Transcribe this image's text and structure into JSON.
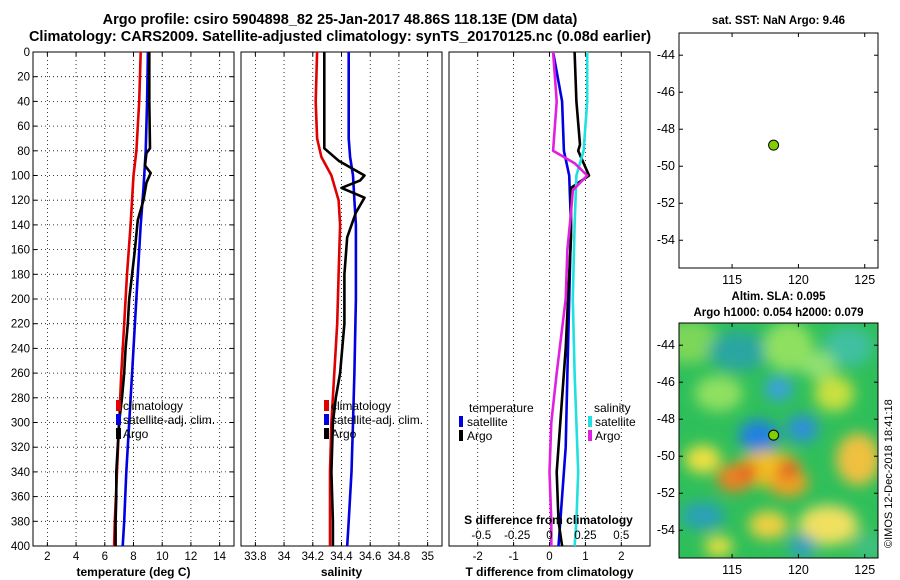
{
  "header": {
    "line1": "Argo profile: csiro 5904898_82 25-Jan-2017 48.86S 118.13E (DM data)",
    "line2": "Climatology: CARS2009. Satellite-adjusted climatology: synTS_20170125.nc (0.08d earlier)"
  },
  "colors": {
    "climatology": "#e00000",
    "satellite": "#0000e0",
    "argo": "#000000",
    "salinity_diff": "#e020e0",
    "salinity_sat": "#20e0e0",
    "marker": "#80d000"
  },
  "chart_data": [
    {
      "type": "line",
      "name": "temperature",
      "xlabel": "temperature (deg C)",
      "ylabel": "depth",
      "xlim": [
        1,
        15
      ],
      "ylim": [
        400,
        0
      ],
      "xticks": [
        2,
        4,
        6,
        8,
        10,
        12,
        14
      ],
      "yticks": [
        0,
        20,
        40,
        60,
        80,
        100,
        120,
        140,
        160,
        180,
        200,
        220,
        240,
        260,
        280,
        300,
        320,
        340,
        360,
        380,
        400
      ],
      "grid": true,
      "legend": [
        "climatology",
        "satellite-adj. clim.",
        "Argo"
      ],
      "series": [
        {
          "name": "climatology",
          "color": "#e00000",
          "points": [
            [
              8.5,
              0
            ],
            [
              8.4,
              40
            ],
            [
              8.2,
              80
            ],
            [
              8.0,
              100
            ],
            [
              7.8,
              140
            ],
            [
              7.55,
              180
            ],
            [
              7.35,
              220
            ],
            [
              7.15,
              260
            ],
            [
              7.0,
              300
            ],
            [
              6.85,
              340
            ],
            [
              6.7,
              380
            ],
            [
              6.65,
              400
            ]
          ]
        },
        {
          "name": "satellite-adj. clim.",
          "color": "#0000e0",
          "points": [
            [
              9.0,
              0
            ],
            [
              8.95,
              40
            ],
            [
              8.85,
              80
            ],
            [
              8.7,
              110
            ],
            [
              8.5,
              140
            ],
            [
              8.3,
              180
            ],
            [
              8.1,
              220
            ],
            [
              7.9,
              260
            ],
            [
              7.7,
              300
            ],
            [
              7.5,
              340
            ],
            [
              7.35,
              380
            ],
            [
              7.25,
              400
            ]
          ]
        },
        {
          "name": "Argo",
          "color": "#000000",
          "points": [
            [
              9.1,
              0
            ],
            [
              9.1,
              40
            ],
            [
              9.15,
              78
            ],
            [
              8.9,
              82
            ],
            [
              8.8,
              92
            ],
            [
              9.2,
              98
            ],
            [
              8.9,
              106
            ],
            [
              8.7,
              120
            ],
            [
              8.3,
              136
            ],
            [
              8.1,
              160
            ],
            [
              7.9,
              180
            ],
            [
              7.7,
              200
            ],
            [
              7.6,
              220
            ],
            [
              7.45,
              240
            ],
            [
              7.35,
              260
            ],
            [
              7.2,
              280
            ],
            [
              7.0,
              300
            ],
            [
              6.9,
              320
            ],
            [
              6.8,
              340
            ],
            [
              6.8,
              360
            ],
            [
              6.75,
              380
            ],
            [
              6.75,
              400
            ]
          ]
        }
      ]
    },
    {
      "type": "line",
      "name": "salinity",
      "xlabel": "salinity",
      "xlim": [
        33.7,
        35.1
      ],
      "ylim": [
        400,
        0
      ],
      "xticks": [
        "33.8",
        "34",
        "34.2",
        "34.4",
        "34.6",
        "34.8",
        "35"
      ],
      "grid": true,
      "legend": [
        "climatology",
        "satellite-adj. clim.",
        "Argo"
      ],
      "series": [
        {
          "name": "climatology",
          "color": "#e00000",
          "points": [
            [
              34.23,
              0
            ],
            [
              34.22,
              40
            ],
            [
              34.23,
              70
            ],
            [
              34.26,
              85
            ],
            [
              34.33,
              100
            ],
            [
              34.38,
              120
            ],
            [
              34.39,
              140
            ],
            [
              34.38,
              180
            ],
            [
              34.37,
              220
            ],
            [
              34.35,
              260
            ],
            [
              34.33,
              300
            ],
            [
              34.32,
              340
            ],
            [
              34.32,
              380
            ],
            [
              34.32,
              400
            ]
          ]
        },
        {
          "name": "satellite-adj. clim.",
          "color": "#0000e0",
          "points": [
            [
              34.45,
              0
            ],
            [
              34.45,
              70
            ],
            [
              34.46,
              85
            ],
            [
              34.48,
              100
            ],
            [
              34.49,
              120
            ],
            [
              34.5,
              140
            ],
            [
              34.5,
              200
            ],
            [
              34.49,
              260
            ],
            [
              34.48,
              300
            ],
            [
              34.47,
              340
            ],
            [
              34.45,
              380
            ],
            [
              34.44,
              400
            ]
          ]
        },
        {
          "name": "Argo",
          "color": "#000000",
          "points": [
            [
              34.28,
              0
            ],
            [
              34.28,
              40
            ],
            [
              34.28,
              78
            ],
            [
              34.38,
              88
            ],
            [
              34.56,
              100
            ],
            [
              34.53,
              104
            ],
            [
              34.4,
              110
            ],
            [
              34.56,
              118
            ],
            [
              34.5,
              130
            ],
            [
              34.44,
              150
            ],
            [
              34.42,
              180
            ],
            [
              34.42,
              220
            ],
            [
              34.39,
              260
            ],
            [
              34.36,
              280
            ],
            [
              34.34,
              300
            ],
            [
              34.33,
              340
            ],
            [
              34.34,
              380
            ],
            [
              34.34,
              400
            ]
          ]
        }
      ]
    },
    {
      "type": "line",
      "name": "difference",
      "xlabel": "T difference from climatology",
      "xlabel_top": "S difference from climatology",
      "xlim": [
        -2.8,
        2.8
      ],
      "ylim": [
        400,
        0
      ],
      "xticks": [
        "-2",
        "-1",
        "0",
        "1",
        "2"
      ],
      "xticks_salinity": [
        "-0.5",
        "-0.25",
        "0",
        "0.25",
        "0.5"
      ],
      "grid": true,
      "legend_temperature_title": "temperature",
      "legend_salinity_title": "salinity",
      "legend_items": [
        "satellite",
        "Argo"
      ],
      "series": [
        {
          "name": "temperature satellite",
          "color": "#0000e0",
          "points": [
            [
              0.1,
              0
            ],
            [
              0.35,
              40
            ],
            [
              0.4,
              80
            ],
            [
              0.55,
              100
            ],
            [
              0.6,
              140
            ],
            [
              0.55,
              200
            ],
            [
              0.5,
              260
            ],
            [
              0.45,
              320
            ],
            [
              0.3,
              380
            ],
            [
              0.25,
              400
            ]
          ]
        },
        {
          "name": "temperature Argo",
          "color": "#000000",
          "points": [
            [
              0.7,
              0
            ],
            [
              0.75,
              40
            ],
            [
              0.85,
              75
            ],
            [
              0.8,
              80
            ],
            [
              1.1,
              100
            ],
            [
              0.6,
              110
            ],
            [
              0.6,
              150
            ],
            [
              0.55,
              180
            ],
            [
              0.45,
              240
            ],
            [
              0.3,
              300
            ],
            [
              0.2,
              340
            ],
            [
              0.25,
              380
            ],
            [
              0.35,
              400
            ]
          ]
        },
        {
          "name": "salinity satellite",
          "color": "#20e0e0",
          "points": [
            [
              1.05,
              0
            ],
            [
              1.05,
              40
            ],
            [
              0.95,
              80
            ],
            [
              0.75,
              100
            ],
            [
              0.7,
              140
            ],
            [
              0.65,
              200
            ],
            [
              0.7,
              260
            ],
            [
              0.75,
              300
            ],
            [
              0.8,
              340
            ],
            [
              0.75,
              380
            ],
            [
              0.7,
              400
            ]
          ]
        },
        {
          "name": "salinity Argo",
          "color": "#e020e0",
          "points": [
            [
              0.1,
              0
            ],
            [
              0.2,
              40
            ],
            [
              0.1,
              80
            ],
            [
              0.7,
              90
            ],
            [
              1.05,
              100
            ],
            [
              0.65,
              112
            ],
            [
              0.6,
              130
            ],
            [
              0.5,
              160
            ],
            [
              0.45,
              200
            ],
            [
              0.2,
              260
            ],
            [
              0.05,
              300
            ],
            [
              0.0,
              340
            ],
            [
              0.05,
              380
            ],
            [
              0.05,
              400
            ]
          ]
        }
      ]
    },
    {
      "type": "scatter",
      "name": "sst-map",
      "title": "sat. SST: NaN Argo: 9.46",
      "xlim": [
        111,
        126
      ],
      "ylim": [
        -55.5,
        -42.8
      ],
      "xticks": [
        "115",
        "120",
        "125"
      ],
      "yticks": [
        "-44",
        "-46",
        "-48",
        "-50",
        "-52",
        "-54"
      ],
      "points": [
        {
          "x": 118.13,
          "y": -48.86
        }
      ]
    },
    {
      "type": "heatmap",
      "name": "sla-map",
      "title1": "Altim. SLA: 0.095",
      "title2": "Argo h1000: 0.054 h2000: 0.079",
      "xlim": [
        111,
        126
      ],
      "ylim": [
        -55.5,
        -42.8
      ],
      "xticks": [
        "115",
        "120",
        "125"
      ],
      "yticks": [
        "-44",
        "-46",
        "-48",
        "-50",
        "-52",
        "-54"
      ],
      "points": [
        {
          "x": 118.13,
          "y": -48.86
        }
      ]
    }
  ],
  "watermark": "©IMOS 12-Dec-2018 18:41:18"
}
